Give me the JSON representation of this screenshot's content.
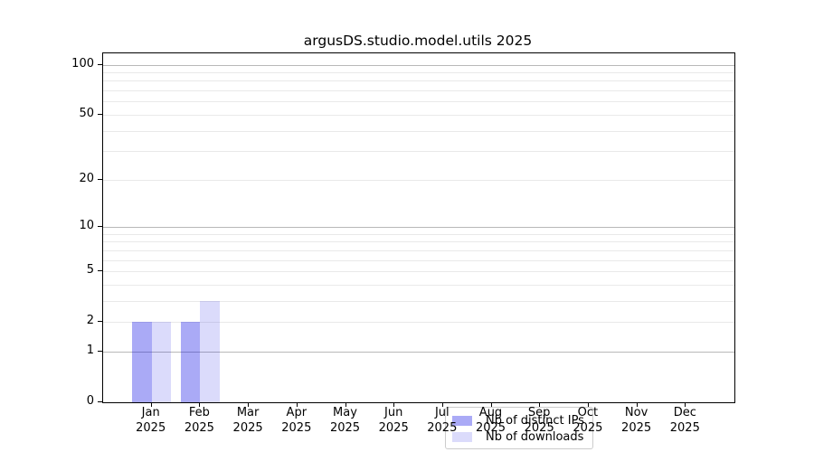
{
  "chart_data": {
    "type": "bar",
    "title": "argusDS.studio.model.utils 2025",
    "categories": [
      {
        "month": "Jan",
        "year": "2025"
      },
      {
        "month": "Feb",
        "year": "2025"
      },
      {
        "month": "Mar",
        "year": "2025"
      },
      {
        "month": "Apr",
        "year": "2025"
      },
      {
        "month": "May",
        "year": "2025"
      },
      {
        "month": "Jun",
        "year": "2025"
      },
      {
        "month": "Jul",
        "year": "2025"
      },
      {
        "month": "Aug",
        "year": "2025"
      },
      {
        "month": "Sep",
        "year": "2025"
      },
      {
        "month": "Oct",
        "year": "2025"
      },
      {
        "month": "Nov",
        "year": "2025"
      },
      {
        "month": "Dec",
        "year": "2025"
      }
    ],
    "series": [
      {
        "name": "Nb of distinct IPs",
        "color": "#a9a9f7",
        "color_rgba": "rgba(5,5,230,0.34)",
        "values": [
          2,
          2,
          0,
          0,
          0,
          0,
          0,
          0,
          0,
          0,
          0,
          0
        ]
      },
      {
        "name": "Nb of downloads",
        "color": "#dcdcf9",
        "color_rgba": "rgba(5,5,230,0.145)",
        "values": [
          2,
          3,
          0,
          0,
          0,
          0,
          0,
          0,
          0,
          0,
          0,
          0
        ]
      }
    ],
    "yscale": "log1p",
    "ylim": [
      0,
      117
    ],
    "yticks": [
      0,
      1,
      2,
      5,
      10,
      20,
      50,
      100
    ],
    "grid_major_values": [
      1,
      10,
      100
    ],
    "grid_minor_values": [
      2,
      3,
      4,
      5,
      6,
      7,
      8,
      9,
      20,
      30,
      40,
      50,
      60,
      70,
      80,
      90
    ],
    "legend_position": "bottom-center",
    "grid": true,
    "colors": {
      "grid_major": "#b8b8b8",
      "grid_minor": "#e9e9e9",
      "axis": "#000000",
      "background": "#ffffff"
    }
  }
}
